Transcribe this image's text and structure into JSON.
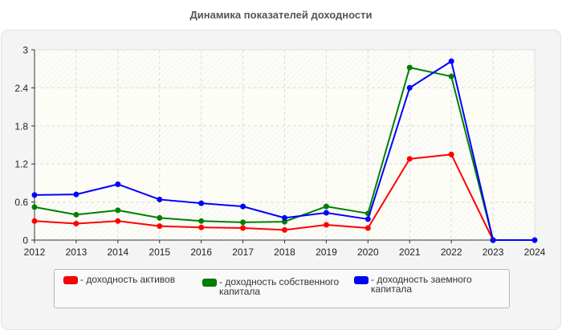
{
  "title": "Динамика показателей доходности",
  "chart_data": {
    "type": "line",
    "title": "Динамика показателей доходности",
    "xlabel": "",
    "ylabel": "",
    "x": [
      "2012",
      "2013",
      "2014",
      "2015",
      "2016",
      "2017",
      "2018",
      "2019",
      "2020",
      "2021",
      "2022",
      "2023",
      "2024"
    ],
    "y_ticks": [
      "0",
      "0.6",
      "1.2",
      "1.8",
      "2.4",
      "3"
    ],
    "ylim": [
      0,
      3
    ],
    "grid": true,
    "legend_position": "bottom",
    "series": [
      {
        "name": "- доходность активов",
        "color": "#ff0000",
        "values": [
          0.3,
          0.26,
          0.3,
          0.22,
          0.2,
          0.19,
          0.16,
          0.24,
          0.19,
          1.28,
          1.35,
          0,
          null
        ]
      },
      {
        "name": "- доходность собственного капитала",
        "color": "#008000",
        "values": [
          0.52,
          0.4,
          0.47,
          0.35,
          0.3,
          0.28,
          0.29,
          0.53,
          0.42,
          2.72,
          2.58,
          0,
          null
        ]
      },
      {
        "name": "- доходность заемного капитала",
        "color": "#0000ff",
        "values": [
          0.71,
          0.72,
          0.88,
          0.64,
          0.58,
          0.53,
          0.35,
          0.43,
          0.33,
          2.4,
          2.82,
          0,
          0
        ]
      }
    ]
  },
  "legend": [
    {
      "label": "- доходность активов",
      "color": "#ff0000"
    },
    {
      "label": "- доходность собственного\nкапитала",
      "color": "#008000"
    },
    {
      "label": "- доходность заемного\nкапитала",
      "color": "#0000ff"
    }
  ]
}
